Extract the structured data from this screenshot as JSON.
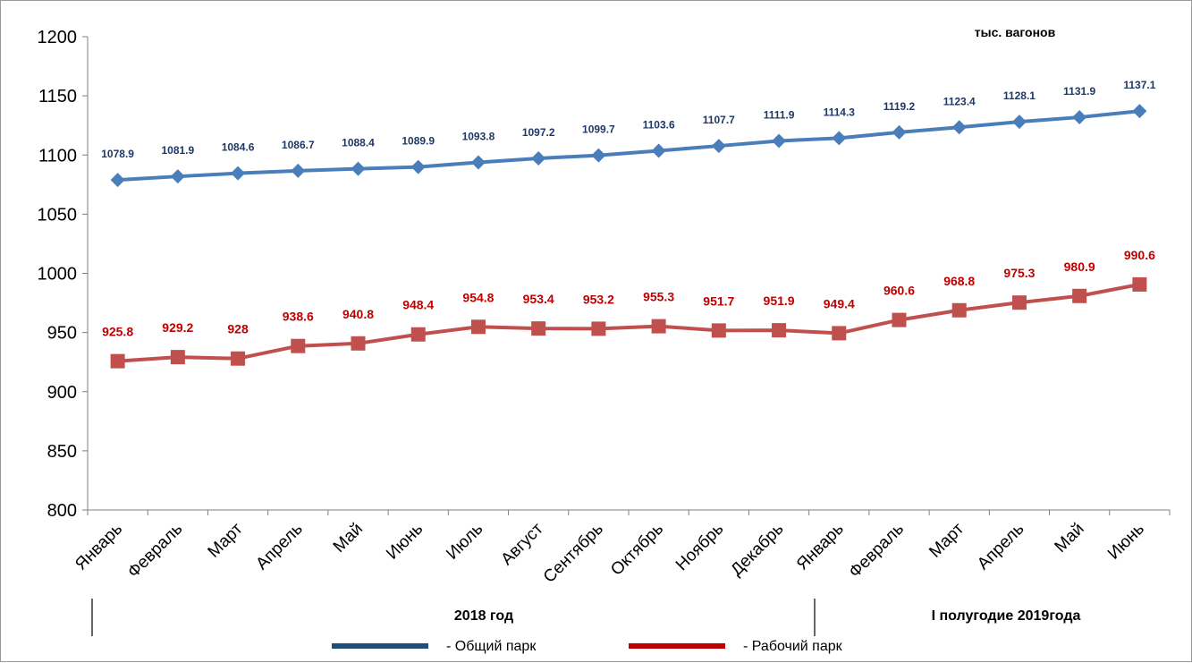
{
  "chart_data": {
    "type": "line",
    "unit_label": "тыс. вагонов",
    "categories": [
      "Январь",
      "Февраль",
      "Март",
      "Апрель",
      "Май",
      "Июнь",
      "Июль",
      "Август",
      "Сентябрь",
      "Октябрь",
      "Ноябрь",
      "Декабрь",
      "Январь",
      "Февраль",
      "Март",
      "Апрель",
      "Май",
      "Июнь"
    ],
    "group_labels": [
      "2018 год",
      "I полугодие 2019года"
    ],
    "ylim": [
      800,
      1200
    ],
    "yticks": [
      800,
      850,
      900,
      950,
      1000,
      1050,
      1100,
      1150,
      1200
    ],
    "grid": false,
    "legend_position": "bottom",
    "series": [
      {
        "name": "- Общий парк",
        "color": "#4a7ebb",
        "marker": "diamond",
        "label_color": "#1f3864",
        "values": [
          1078.9,
          1081.9,
          1084.6,
          1086.7,
          1088.4,
          1089.9,
          1093.8,
          1097.2,
          1099.7,
          1103.6,
          1107.7,
          1111.9,
          1114.3,
          1119.2,
          1123.4,
          1128.1,
          1131.9,
          1137.1
        ]
      },
      {
        "name": "- Рабочий парк",
        "color": "#c0504d",
        "marker": "square",
        "label_color": "#c00000",
        "values": [
          925.8,
          929.2,
          928,
          938.6,
          940.8,
          948.4,
          954.8,
          953.4,
          953.2,
          955.3,
          951.7,
          951.9,
          949.4,
          960.6,
          968.8,
          975.3,
          980.9,
          990.6
        ]
      }
    ]
  },
  "legend_swatches": {
    "series_0": "#1f4e79",
    "series_1": "#c00000"
  }
}
